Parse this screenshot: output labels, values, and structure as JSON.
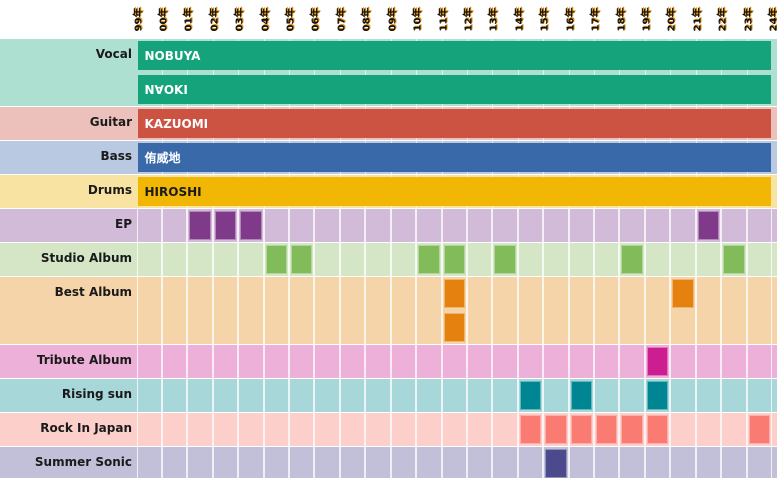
{
  "chart_data": {
    "type": "timeline",
    "years": [
      "99年",
      "00年",
      "01年",
      "02年",
      "03年",
      "04年",
      "05年",
      "06年",
      "07年",
      "08年",
      "09年",
      "10年",
      "11年",
      "12年",
      "13年",
      "14年",
      "15年",
      "16年",
      "17年",
      "18年",
      "19年",
      "20年",
      "21年",
      "22年",
      "23年",
      "24年"
    ],
    "members": [
      {
        "label": "Vocal",
        "bars": [
          "NOBUYA",
          "N∀OKI"
        ],
        "bg": "#aee0d2",
        "color": "#14a37a",
        "text": "#ffffff"
      },
      {
        "label": "Guitar",
        "bars": [
          "KAZUOMI"
        ],
        "bg": "#ecc0bb",
        "color": "#cc5241",
        "text": "#ffffff"
      },
      {
        "label": "Bass",
        "bars": [
          "侑威地"
        ],
        "bg": "#b8c9e1",
        "color": "#3a69aa",
        "text": "#ffffff"
      },
      {
        "label": "Drums",
        "bars": [
          "HIROSHI"
        ],
        "bg": "#f9e3a3",
        "color": "#f2b705",
        "text": "#1a1a1a"
      }
    ],
    "releases": [
      {
        "label": "EP",
        "rows": 1,
        "bg": "#d2bbd8",
        "color": "#7f3a8a",
        "events": [
          [
            "01年",
            0
          ],
          [
            "02年",
            0
          ],
          [
            "03年",
            0
          ],
          [
            "21年",
            0
          ]
        ]
      },
      {
        "label": "Studio Album",
        "rows": 1,
        "bg": "#d4e6c6",
        "color": "#82bb5a",
        "events": [
          [
            "04年",
            0
          ],
          [
            "05年",
            0
          ],
          [
            "10年",
            0
          ],
          [
            "11年",
            0
          ],
          [
            "13年",
            0
          ],
          [
            "18年",
            0
          ],
          [
            "22年",
            0
          ]
        ]
      },
      {
        "label": "Best Album",
        "rows": 2,
        "bg": "#f6d4aa",
        "color": "#e5820f",
        "events": [
          [
            "11年",
            0
          ],
          [
            "11年",
            1
          ],
          [
            "20年",
            0
          ]
        ]
      },
      {
        "label": "Tribute Album",
        "rows": 1,
        "bg": "#edb0d9",
        "color": "#cc1d91",
        "events": [
          [
            "19年",
            0
          ]
        ]
      },
      {
        "label": "Rising sun",
        "rows": 1,
        "bg": "#a8d7da",
        "color": "#008593",
        "events": [
          [
            "14年",
            0
          ],
          [
            "16年",
            0
          ],
          [
            "19年",
            0
          ]
        ]
      },
      {
        "label": "Rock In Japan",
        "rows": 1,
        "bg": "#fccfcb",
        "color": "#f97b71",
        "events": [
          [
            "14年",
            0
          ],
          [
            "15年",
            0
          ],
          [
            "16年",
            0
          ],
          [
            "17年",
            0
          ],
          [
            "18年",
            0
          ],
          [
            "19年",
            0
          ],
          [
            "23年",
            0
          ]
        ]
      },
      {
        "label": "Summer Sonic",
        "rows": 1,
        "bg": "#c1c0d8",
        "color": "#4a4a8c",
        "events": [
          [
            "15年",
            0
          ]
        ]
      }
    ]
  }
}
